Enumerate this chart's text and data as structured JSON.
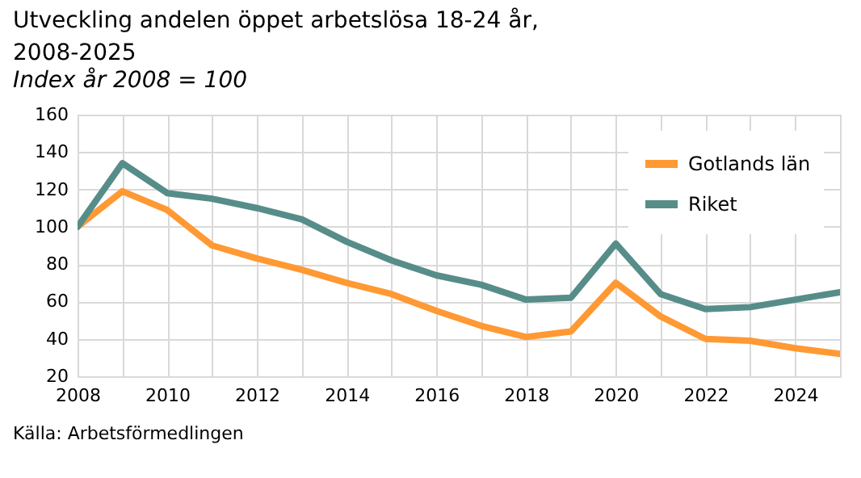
{
  "chart_data": {
    "type": "line",
    "title": [
      "Utveckling andelen öppet arbetslösa 18-24 år,",
      "2008-2025"
    ],
    "subtitle": "Index år 2008 = 100",
    "x": [
      2008,
      2009,
      2010,
      2011,
      2012,
      2013,
      2014,
      2015,
      2016,
      2017,
      2018,
      2019,
      2020,
      2021,
      2022,
      2023,
      2024,
      2025
    ],
    "series": [
      {
        "name": "Gotlands län",
        "color": "#ff9933",
        "values": [
          100,
          119,
          109,
          90,
          83,
          77,
          70,
          64,
          55,
          47,
          41,
          44,
          70,
          52,
          40,
          39,
          35,
          32
        ]
      },
      {
        "name": "Riket",
        "color": "#568d89",
        "values": [
          100,
          134,
          118,
          115,
          110,
          104,
          92,
          82,
          74,
          69,
          61,
          62,
          91,
          64,
          56,
          57,
          61,
          65
        ]
      }
    ],
    "xlim": [
      2008,
      2025
    ],
    "xticks": [
      2008,
      {
        "value": 2009,
        "label": null
      },
      2010,
      {
        "value": 2011,
        "label": null
      },
      2012,
      {
        "value": 2013,
        "label": null
      },
      2014,
      {
        "value": 2015,
        "label": null
      },
      2016,
      {
        "value": 2017,
        "label": null
      },
      2018,
      {
        "value": 2019,
        "label": null
      },
      2020,
      {
        "value": 2021,
        "label": null
      },
      2022,
      {
        "value": 2023,
        "label": null
      },
      2024,
      {
        "value": 2025,
        "label": null
      }
    ],
    "ylim": [
      20,
      160
    ],
    "yticks": [
      20,
      40,
      60,
      80,
      100,
      120,
      140,
      160
    ],
    "grid": true,
    "legend": "top right",
    "marker": "none",
    "line_style": "solid",
    "annotations": [
      "Källa: Arbetsförmedlingen"
    ]
  }
}
